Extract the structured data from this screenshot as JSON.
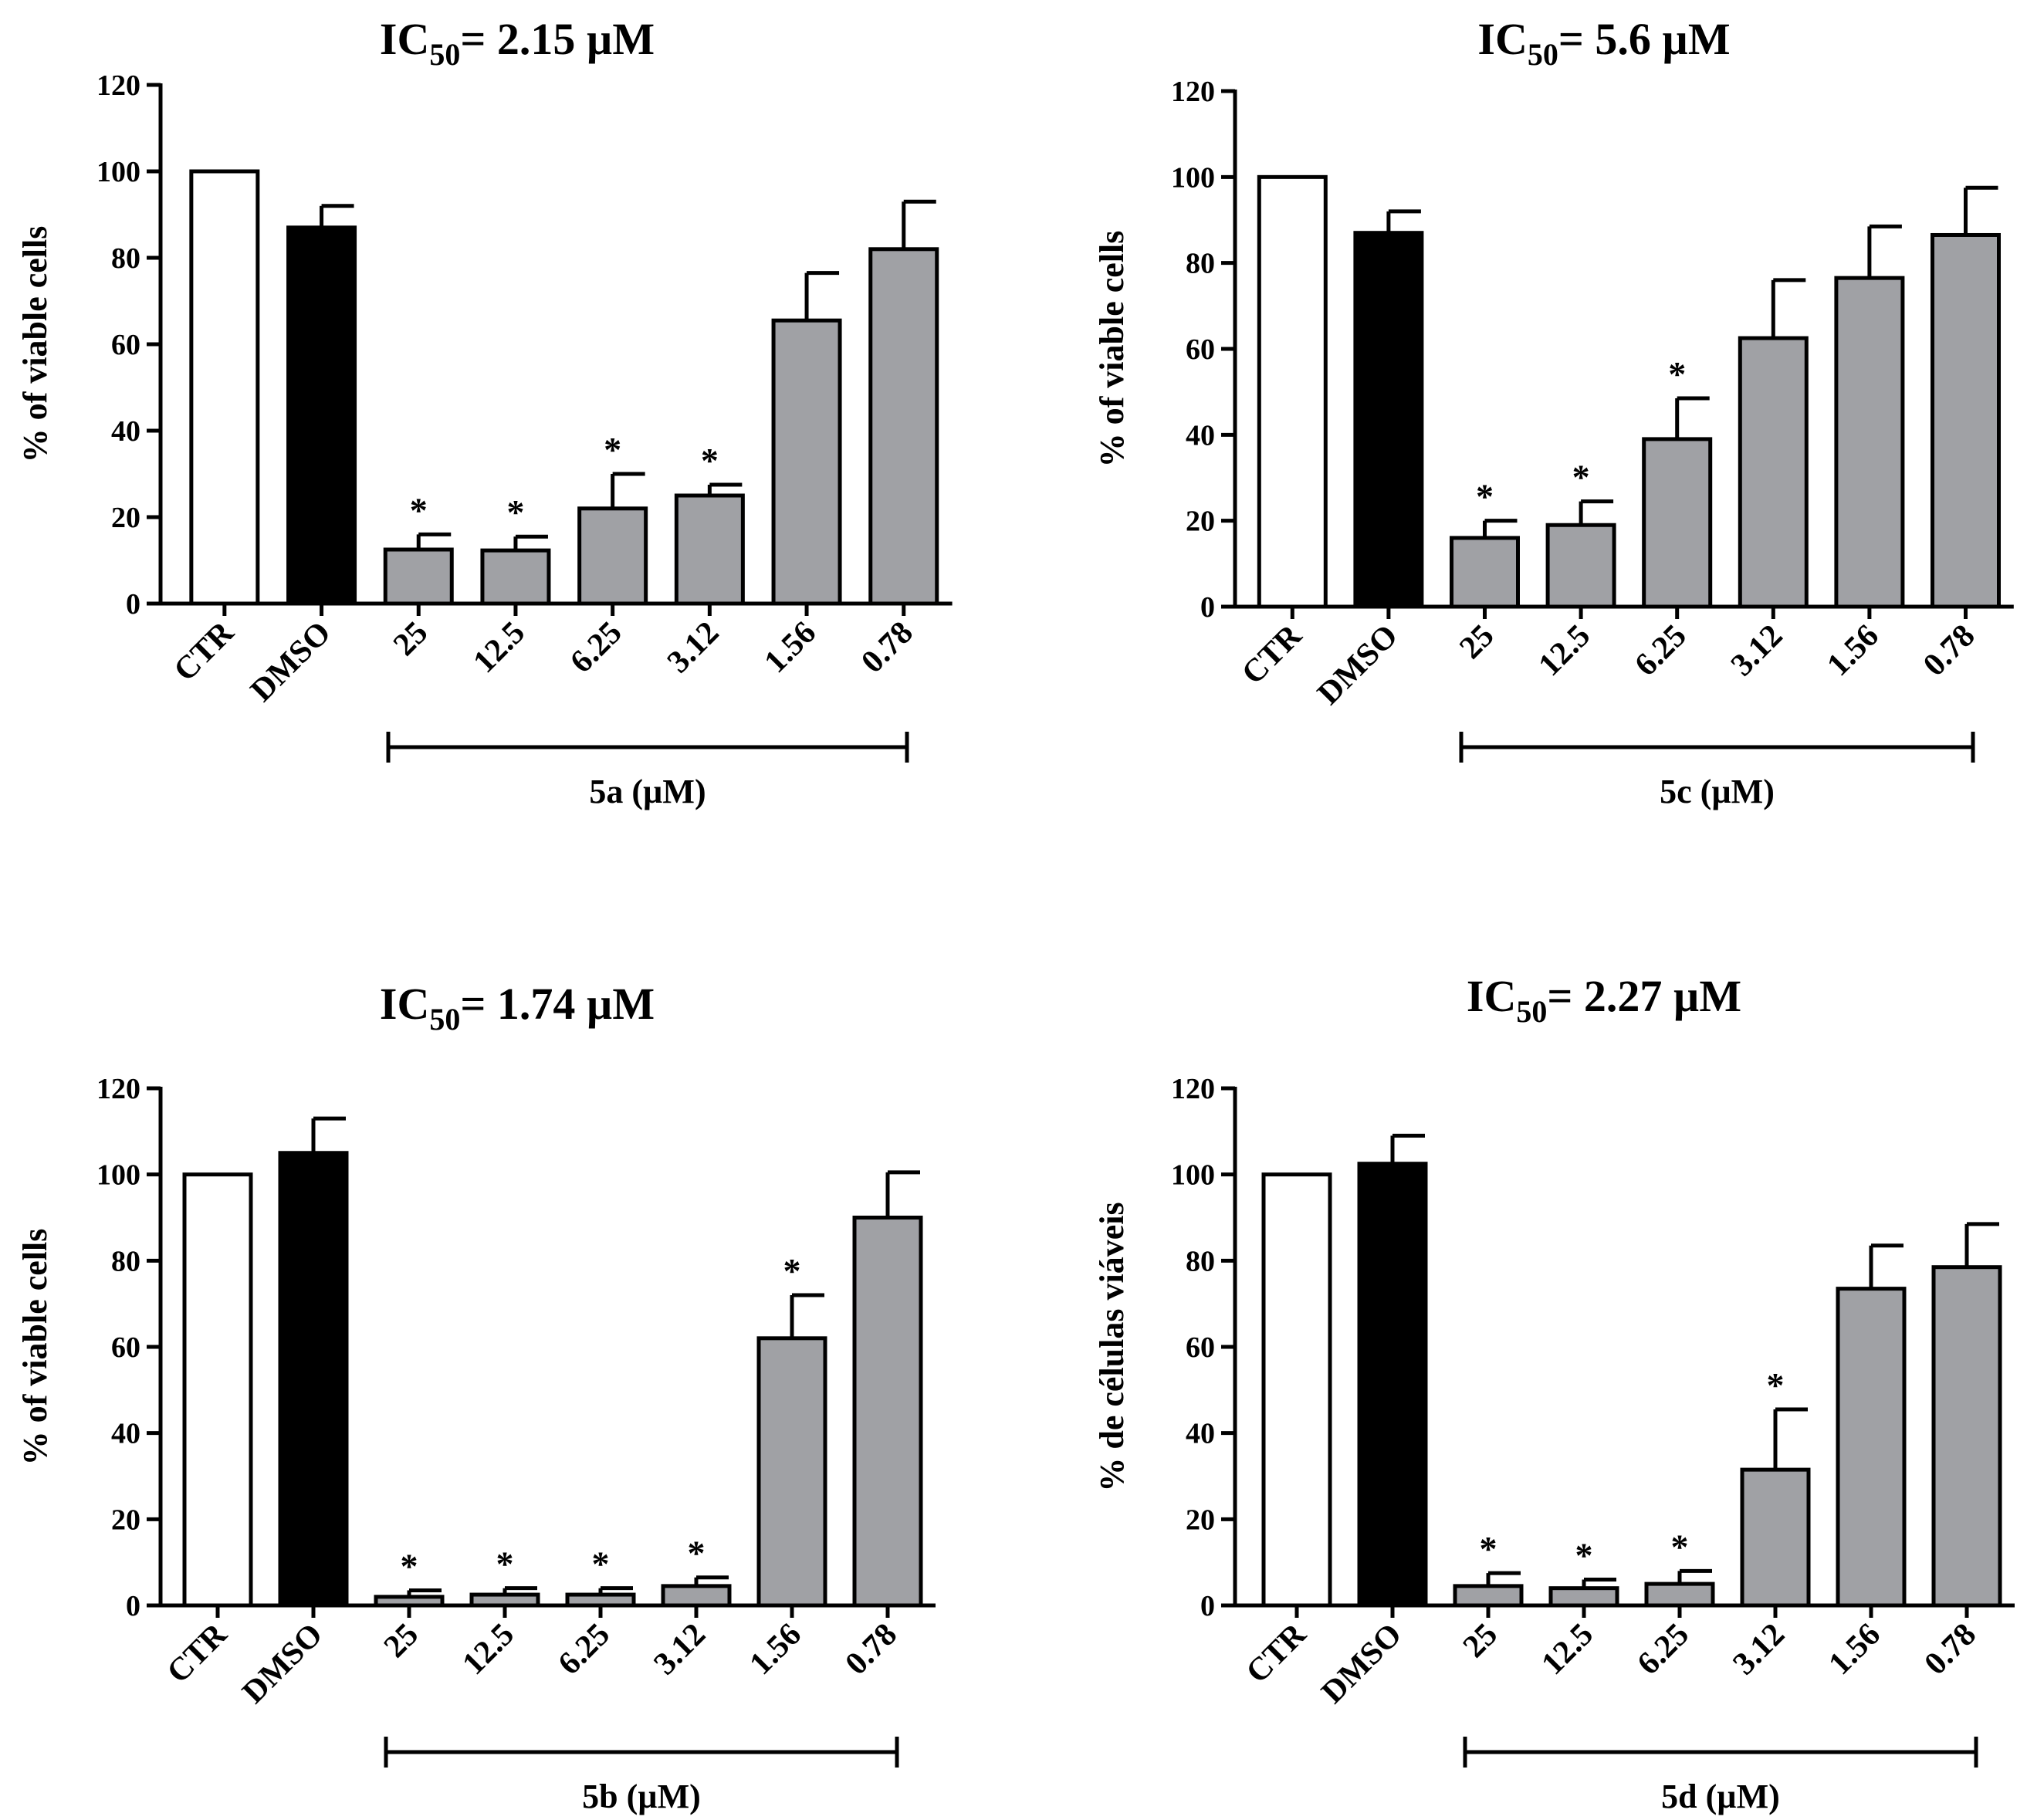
{
  "chart_data": [
    {
      "type": "bar",
      "title": "IC",
      "title_subscript": "50",
      "title_value": "= 2.15",
      "title_unit": "µM",
      "ylabel": "% of viable cells",
      "xlabel": "5a (µM)",
      "ylim": [
        0,
        120
      ],
      "yticks": [
        "0",
        "20",
        "40",
        "60",
        "80",
        "100",
        "120"
      ],
      "categories": [
        "CTR",
        "DMSO",
        "25",
        "12.5",
        "6.25",
        "3.12",
        "1.56",
        "0.78"
      ],
      "values": [
        100,
        87,
        12.5,
        12.3,
        22,
        25,
        65.5,
        82
      ],
      "errors": [
        0,
        5,
        3.5,
        3.2,
        8,
        2.5,
        11,
        11
      ],
      "significant": [
        false,
        false,
        true,
        true,
        true,
        true,
        false,
        false
      ],
      "significance_marker": "*",
      "bar_colors": [
        "#ffffff",
        "#000000",
        "#a0a1a5",
        "#a0a1a5",
        "#a0a1a5",
        "#a0a1a5",
        "#a0a1a5",
        "#a0a1a5"
      ]
    },
    {
      "type": "bar",
      "title": "IC",
      "title_subscript": "50",
      "title_value": "= 5.6",
      "title_unit": "µM",
      "ylabel": "% of viable cells",
      "xlabel": "5c (µM)",
      "ylim": [
        0,
        120
      ],
      "yticks": [
        "0",
        "20",
        "40",
        "60",
        "80",
        "100",
        "120"
      ],
      "categories": [
        "CTR",
        "DMSO",
        "25",
        "12.5",
        "6.25",
        "3.12",
        "1.56",
        "0.78"
      ],
      "values": [
        100,
        87,
        16,
        19,
        39,
        62.5,
        76.5,
        86.5
      ],
      "errors": [
        0,
        5,
        4,
        5.5,
        9.5,
        13.5,
        12,
        11
      ],
      "significant": [
        false,
        false,
        true,
        true,
        true,
        false,
        false,
        false
      ],
      "significance_marker": "*",
      "bar_colors": [
        "#ffffff",
        "#000000",
        "#a0a1a5",
        "#a0a1a5",
        "#a0a1a5",
        "#a0a1a5",
        "#a0a1a5",
        "#a0a1a5"
      ]
    },
    {
      "type": "bar",
      "title": "IC",
      "title_subscript": "50",
      "title_value": "= 1.74",
      "title_unit": "µM",
      "ylabel": "% of viable cells",
      "xlabel": "5b (µM)",
      "ylim": [
        0,
        120
      ],
      "yticks": [
        "0",
        "20",
        "40",
        "60",
        "80",
        "100",
        "120"
      ],
      "categories": [
        "CTR",
        "DMSO",
        "25",
        "12.5",
        "6.25",
        "3.12",
        "1.56",
        "0.78"
      ],
      "values": [
        100,
        105,
        2,
        2.5,
        2.5,
        4.5,
        62,
        90
      ],
      "errors": [
        0,
        8,
        1.5,
        1.5,
        1.5,
        2,
        10,
        10.5
      ],
      "significant": [
        false,
        false,
        true,
        true,
        true,
        true,
        true,
        false
      ],
      "significance_marker": "*",
      "bar_colors": [
        "#ffffff",
        "#000000",
        "#a0a1a5",
        "#a0a1a5",
        "#a0a1a5",
        "#a0a1a5",
        "#a0a1a5",
        "#a0a1a5"
      ]
    },
    {
      "type": "bar",
      "title": "IC",
      "title_subscript": "50",
      "title_value": "= 2.27",
      "title_unit": "µM",
      "ylabel": "% de células viáveis",
      "xlabel": "5d (µM)",
      "ylim": [
        0,
        120
      ],
      "yticks": [
        "0",
        "20",
        "40",
        "60",
        "80",
        "100",
        "120"
      ],
      "categories": [
        "CTR",
        "DMSO",
        "25",
        "12.5",
        "6.25",
        "3.12",
        "1.56",
        "0.78"
      ],
      "values": [
        100,
        102.5,
        4.5,
        4,
        5,
        31.5,
        73.5,
        78.5
      ],
      "errors": [
        0,
        6.5,
        3,
        2,
        3,
        14,
        10,
        10
      ],
      "significant": [
        false,
        false,
        true,
        true,
        true,
        true,
        false,
        false
      ],
      "significance_marker": "*",
      "bar_colors": [
        "#ffffff",
        "#000000",
        "#a0a1a5",
        "#a0a1a5",
        "#a0a1a5",
        "#a0a1a5",
        "#a0a1a5",
        "#a0a1a5"
      ]
    }
  ]
}
